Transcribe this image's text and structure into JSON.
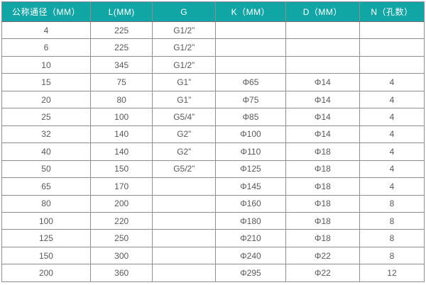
{
  "table": {
    "headers": [
      "公称通径（MM）",
      "L(MM)",
      "G",
      "K（MM）",
      "D（MM）",
      "N（孔数）"
    ],
    "rows": [
      [
        "4",
        "225",
        "G1/2”",
        "",
        "",
        ""
      ],
      [
        "6",
        "225",
        "G1/2”",
        "",
        "",
        ""
      ],
      [
        "10",
        "345",
        "G1/2”",
        "",
        "",
        ""
      ],
      [
        "15",
        "75",
        "G1”",
        "Φ65",
        "Φ14",
        "4"
      ],
      [
        "20",
        "80",
        "G1”",
        "Φ75",
        "Φ14",
        "4"
      ],
      [
        "25",
        "100",
        "G5/4”",
        "Φ85",
        "Φ14",
        "4"
      ],
      [
        "32",
        "140",
        "G2”",
        "Φ100",
        "Φ14",
        "4"
      ],
      [
        "40",
        "140",
        "G2”",
        "Φ110",
        "Φ18",
        "4"
      ],
      [
        "50",
        "150",
        "G5/2”",
        "Φ125",
        "Φ18",
        "4"
      ],
      [
        "65",
        "170",
        "",
        "Φ145",
        "Φ18",
        "4"
      ],
      [
        "80",
        "200",
        "",
        "Φ160",
        "Φ18",
        "8"
      ],
      [
        "100",
        "220",
        "",
        "Φ180",
        "Φ18",
        "8"
      ],
      [
        "125",
        "250",
        "",
        "Φ210",
        "Φ18",
        "8"
      ],
      [
        "150",
        "300",
        "",
        "Φ240",
        "Φ22",
        "8"
      ],
      [
        "200",
        "360",
        "",
        "Φ295",
        "Φ22",
        "12"
      ]
    ],
    "colors": {
      "header_bg": "#12a5a6",
      "header_text": "#ffffff",
      "cell_text": "#595959",
      "border": "#8f8f8f",
      "row_bg": "#ffffff"
    }
  }
}
